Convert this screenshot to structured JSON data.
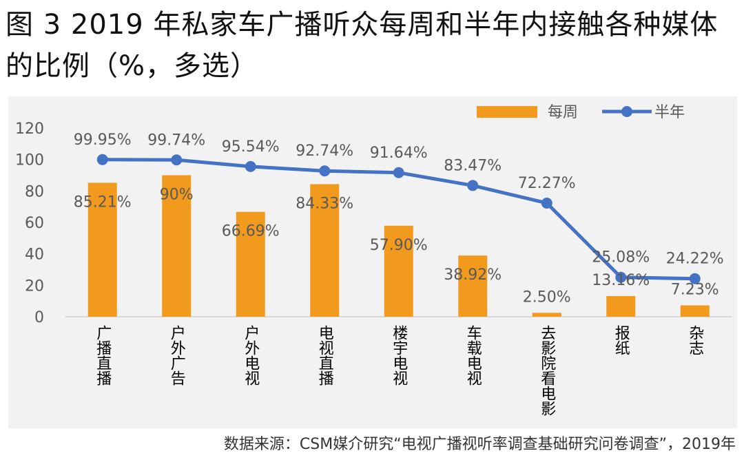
{
  "title": "图 3 2019 年私家车广播听众每周和半年内接触各种媒体的比例（%，多选）",
  "source": "数据来源：CSM媒介研究“电视广播视听率调查基础研究问卷调查”，2019年",
  "colors": {
    "bar": "#F29A1E",
    "line": "#4472C4",
    "label": "#595959",
    "axis": "#595959"
  },
  "chart_data": {
    "type": "bar",
    "categories": [
      "广播直播",
      "户外广告",
      "户外电视",
      "电视直播",
      "楼宇电视",
      "车载电视",
      "去影院看电影",
      "报纸",
      "杂志"
    ],
    "series": [
      {
        "name": "每周",
        "type": "bar",
        "values": [
          85.21,
          90,
          66.69,
          84.33,
          57.9,
          38.92,
          2.5,
          13.16,
          7.23
        ],
        "labels": [
          "85.21%",
          "90%",
          "66.69%",
          "84.33%",
          "57.90%",
          "38.92%",
          "2.50%",
          "13.16%",
          "7.23%"
        ]
      },
      {
        "name": "半年",
        "type": "line",
        "values": [
          99.95,
          99.74,
          95.54,
          92.74,
          91.64,
          83.47,
          72.27,
          25.08,
          24.22
        ],
        "labels": [
          "99.95%",
          "99.74%",
          "95.54%",
          "92.74%",
          "91.64%",
          "83.47%",
          "72.27%",
          "25.08%",
          "24.22%"
        ]
      }
    ],
    "yticks": [
      "0",
      "20",
      "40",
      "60",
      "80",
      "100",
      "120"
    ],
    "ylim": [
      0,
      120
    ],
    "grid": false,
    "legend_position": "top-right"
  }
}
